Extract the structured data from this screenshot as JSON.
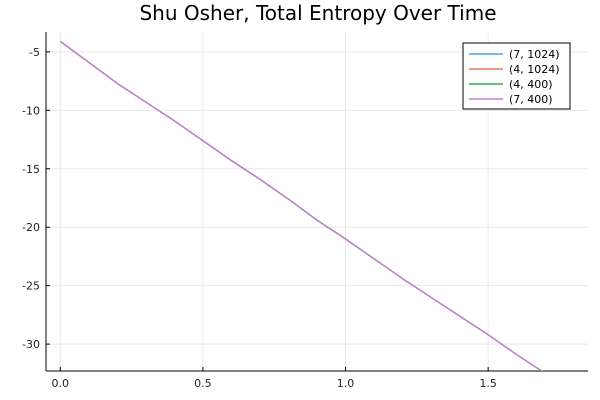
{
  "chart_data": {
    "type": "line",
    "title": "Shu Osher, Total Entropy Over Time",
    "xlabel": "",
    "ylabel": "",
    "xlim": [
      -0.05,
      1.85
    ],
    "ylim": [
      -32.3,
      -3.3
    ],
    "xticks": [
      0.0,
      0.5,
      1.0,
      1.5
    ],
    "xtick_labels": [
      "0.0",
      "0.5",
      "1.0",
      "1.5"
    ],
    "yticks": [
      -5,
      -10,
      -15,
      -20,
      -25,
      -30
    ],
    "ytick_labels": [
      "-5",
      "-10",
      "-15",
      "-20",
      "-25",
      "-30"
    ],
    "grid": true,
    "legend_position": "top-right",
    "x": [
      0.0,
      0.1,
      0.2,
      0.3,
      0.4,
      0.5,
      0.6,
      0.7,
      0.8,
      0.9,
      1.0,
      1.1,
      1.2,
      1.3,
      1.4,
      1.5,
      1.6,
      1.7,
      1.8
    ],
    "series": [
      {
        "name": "(7, 1024)",
        "color": "#4aa0e8",
        "values": [
          -4.1,
          -5.9,
          -7.7,
          -9.3,
          -10.9,
          -12.6,
          -14.3,
          -15.9,
          -17.6,
          -19.4,
          -21.0,
          -22.7,
          -24.4,
          -26.0,
          -27.6,
          -29.2,
          -30.9,
          -32.5,
          -34.1
        ]
      },
      {
        "name": "(4, 1024)",
        "color": "#e0785a",
        "values": [
          -4.1,
          -5.9,
          -7.7,
          -9.3,
          -10.9,
          -12.6,
          -14.3,
          -15.9,
          -17.6,
          -19.4,
          -21.0,
          -22.7,
          -24.4,
          -26.0,
          -27.6,
          -29.2,
          -30.9,
          -32.5,
          -34.1
        ]
      },
      {
        "name": "(4, 400)",
        "color": "#3aa84a",
        "values": [
          -4.1,
          -5.9,
          -7.7,
          -9.3,
          -10.9,
          -12.6,
          -14.3,
          -15.9,
          -17.6,
          -19.4,
          -21.0,
          -22.7,
          -24.4,
          -26.0,
          -27.6,
          -29.2,
          -30.9,
          -32.5,
          -34.1
        ]
      },
      {
        "name": "(7, 400)",
        "color": "#c77fd6",
        "values": [
          -4.1,
          -5.9,
          -7.7,
          -9.3,
          -10.9,
          -12.6,
          -14.3,
          -15.9,
          -17.6,
          -19.4,
          -21.0,
          -22.7,
          -24.4,
          -26.0,
          -27.6,
          -29.2,
          -30.9,
          -32.5,
          -34.1
        ]
      }
    ]
  }
}
